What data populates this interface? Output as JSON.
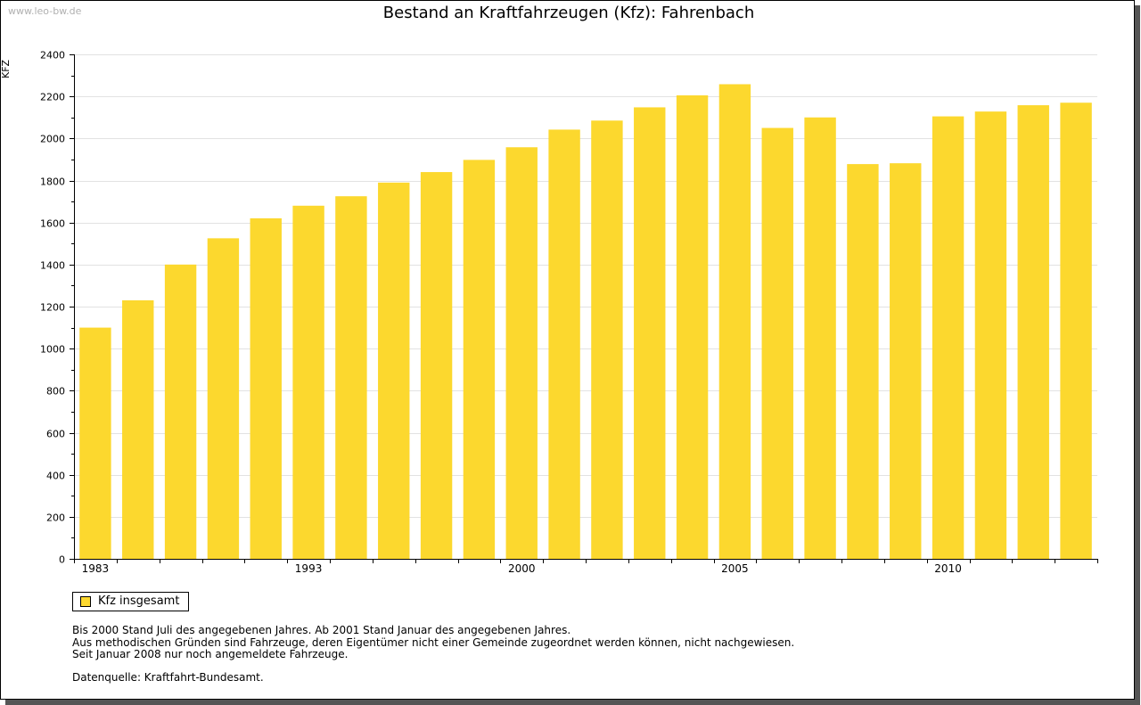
{
  "watermark": "www.leo-bw.de",
  "legend": {
    "label": "Kfz insgesamt"
  },
  "notes": [
    "Bis 2000 Stand Juli des angegebenen Jahres. Ab 2001 Stand Januar des angegebenen Jahres.",
    "Aus methodischen Gründen sind Fahrzeuge, deren Eigentümer nicht einer Gemeinde zugeordnet werden können, nicht nachgewiesen.",
    "Seit Januar 2008 nur noch angemeldete Fahrzeuge."
  ],
  "source": "Datenquelle: Kraftfahrt-Bundesamt.",
  "chart_data": {
    "type": "bar",
    "title": "Bestand an Kraftfahrzeugen (Kfz): Fahrenbach",
    "ylabel": "KFZ",
    "xlabel": "",
    "ylim": [
      0,
      2400
    ],
    "yticks": [
      0,
      200,
      400,
      600,
      800,
      1000,
      1200,
      1400,
      1600,
      1800,
      2000,
      2200,
      2400
    ],
    "xtick_labels": [
      {
        "index": 0,
        "label": "1983"
      },
      {
        "index": 5,
        "label": "1993"
      },
      {
        "index": 10,
        "label": "2000"
      },
      {
        "index": 15,
        "label": "2005"
      },
      {
        "index": 20,
        "label": "2010"
      }
    ],
    "grid": true,
    "legend_position": "bottom-left",
    "color": "#fcd82e",
    "series": [
      {
        "name": "Kfz insgesamt",
        "values": [
          1100,
          1230,
          1400,
          1525,
          1620,
          1680,
          1725,
          1790,
          1840,
          1898,
          1958,
          2042,
          2085,
          2148,
          2205,
          2258,
          2050,
          2100,
          1878,
          1882,
          2105,
          2128,
          2158,
          2170
        ]
      }
    ]
  }
}
